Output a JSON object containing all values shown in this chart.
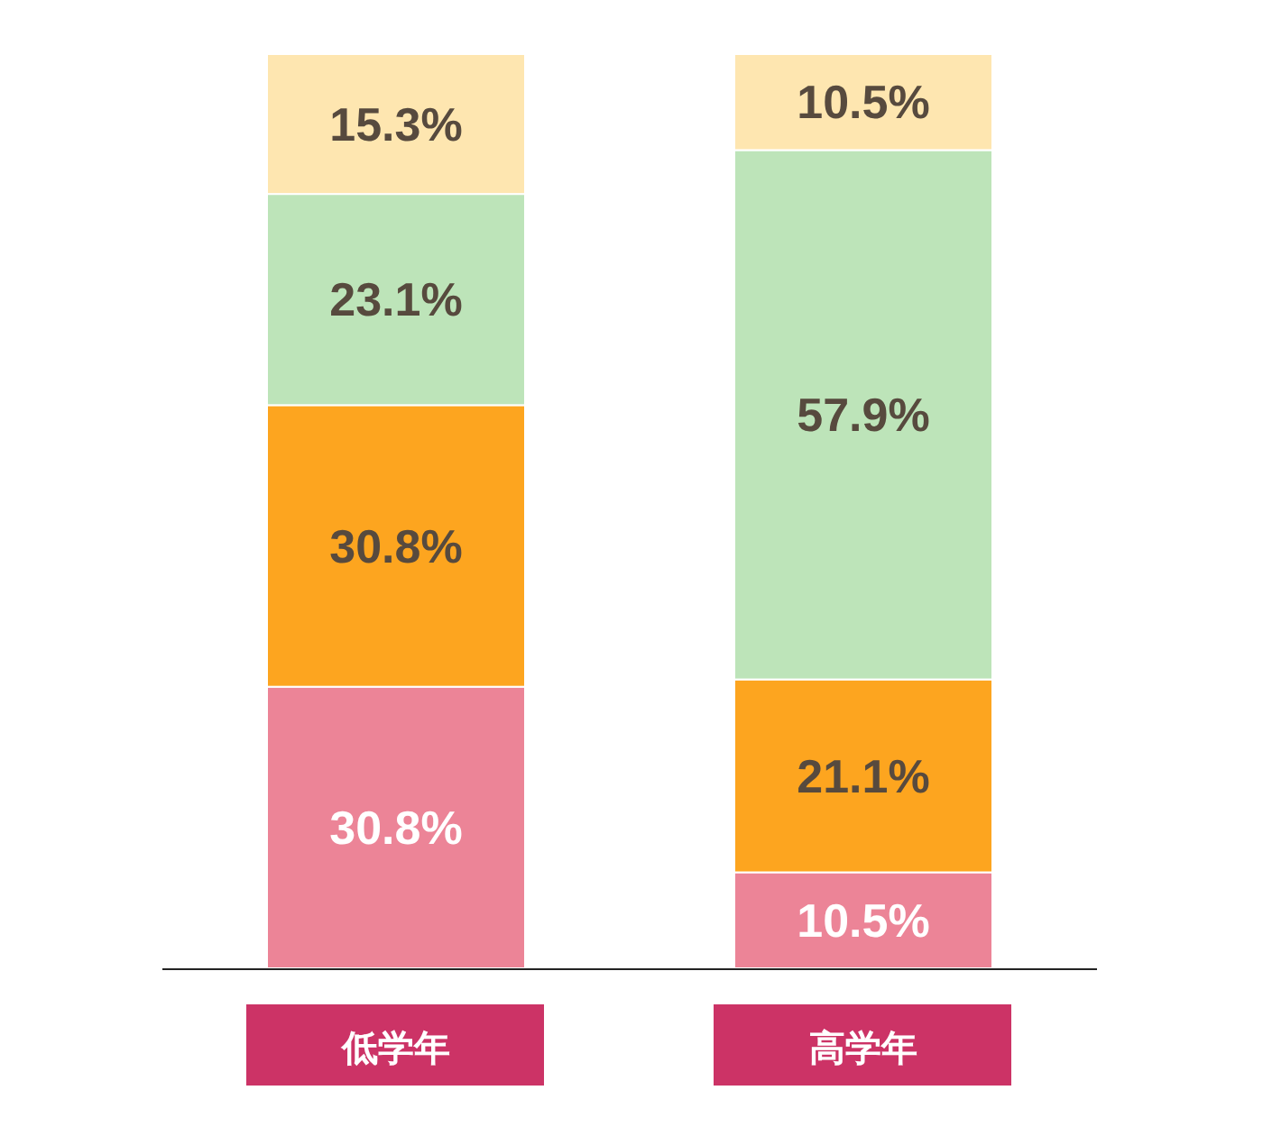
{
  "chart_data": {
    "type": "bar",
    "stacked": true,
    "categories": [
      "低学年",
      "高学年"
    ],
    "series": [
      {
        "color": "#ec8497",
        "values": [
          30.8,
          10.5
        ],
        "value_labels": [
          "30.8%",
          "10.5%"
        ]
      },
      {
        "color": "#fda51f",
        "values": [
          30.8,
          21.1
        ],
        "value_labels": [
          "30.8%",
          "21.1%"
        ]
      },
      {
        "color": "#bde4b9",
        "values": [
          23.1,
          57.9
        ],
        "value_labels": [
          "23.1%",
          "57.9%"
        ]
      },
      {
        "color": "#fee6b0",
        "values": [
          15.3,
          10.5
        ],
        "value_labels": [
          "15.3%",
          "10.5%"
        ]
      }
    ]
  }
}
